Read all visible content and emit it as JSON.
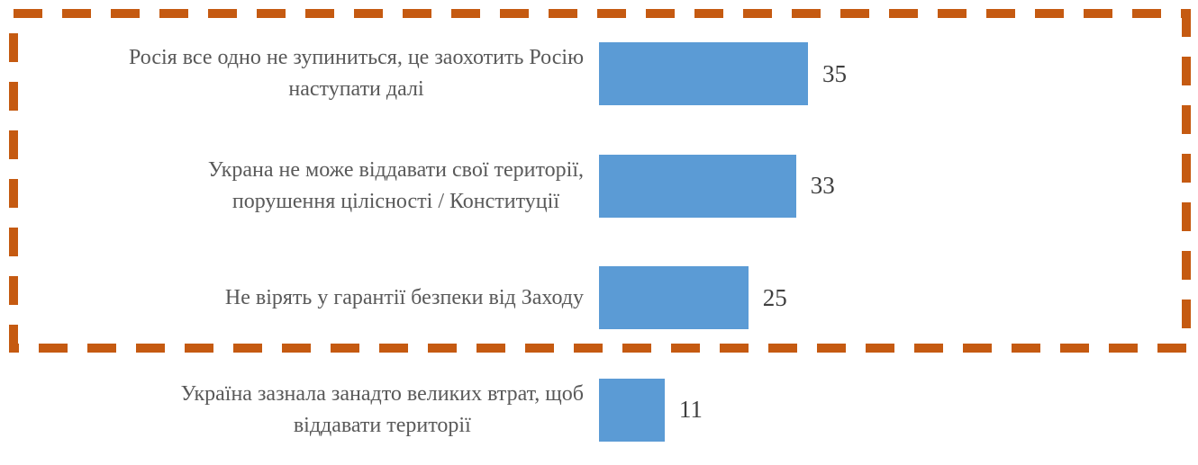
{
  "chart_data": {
    "type": "bar",
    "orientation": "horizontal",
    "title": "",
    "xlabel": "",
    "ylabel": "",
    "xlim": [
      0,
      35
    ],
    "grid": false,
    "legend": false,
    "categories": [
      "Росія все одно не зупиниться, це заохотить Росію наступати далі",
      "Украна не може віддавати свої території, порушення цілісності / Конституції",
      "Не вірять у гарантії безпеки від Заходу",
      "Україна зазнала занадто великих втрат, щоб віддавати території"
    ],
    "values": [
      35,
      33,
      25,
      11
    ],
    "items": [
      {
        "label_lines": [
          "Росія все одно не зупиниться, це заохотить Росію",
          "наступати далі"
        ],
        "value": 35,
        "inside_highlight_box": true
      },
      {
        "label_lines": [
          "Украна не може віддавати свої території,",
          "порушення цілісності / Конституції"
        ],
        "value": 33,
        "inside_highlight_box": true
      },
      {
        "label_lines": [
          "Не вірять у гарантії безпеки від Заходу"
        ],
        "value": 25,
        "inside_highlight_box": true
      },
      {
        "label_lines": [
          "Україна зазнала занадто великих втрат, щоб",
          "віддавати території"
        ],
        "value": 11,
        "inside_highlight_box": false
      }
    ],
    "colors": {
      "bar_fill": "#5B9BD5",
      "value_label": "#3F3F3F",
      "category_label": "#595959",
      "highlight_box_stroke": "#C55A11",
      "background": "#FFFFFF"
    },
    "annotations": {
      "highlight_box": "dashed orange rectangle enclosing the top three bars"
    }
  }
}
